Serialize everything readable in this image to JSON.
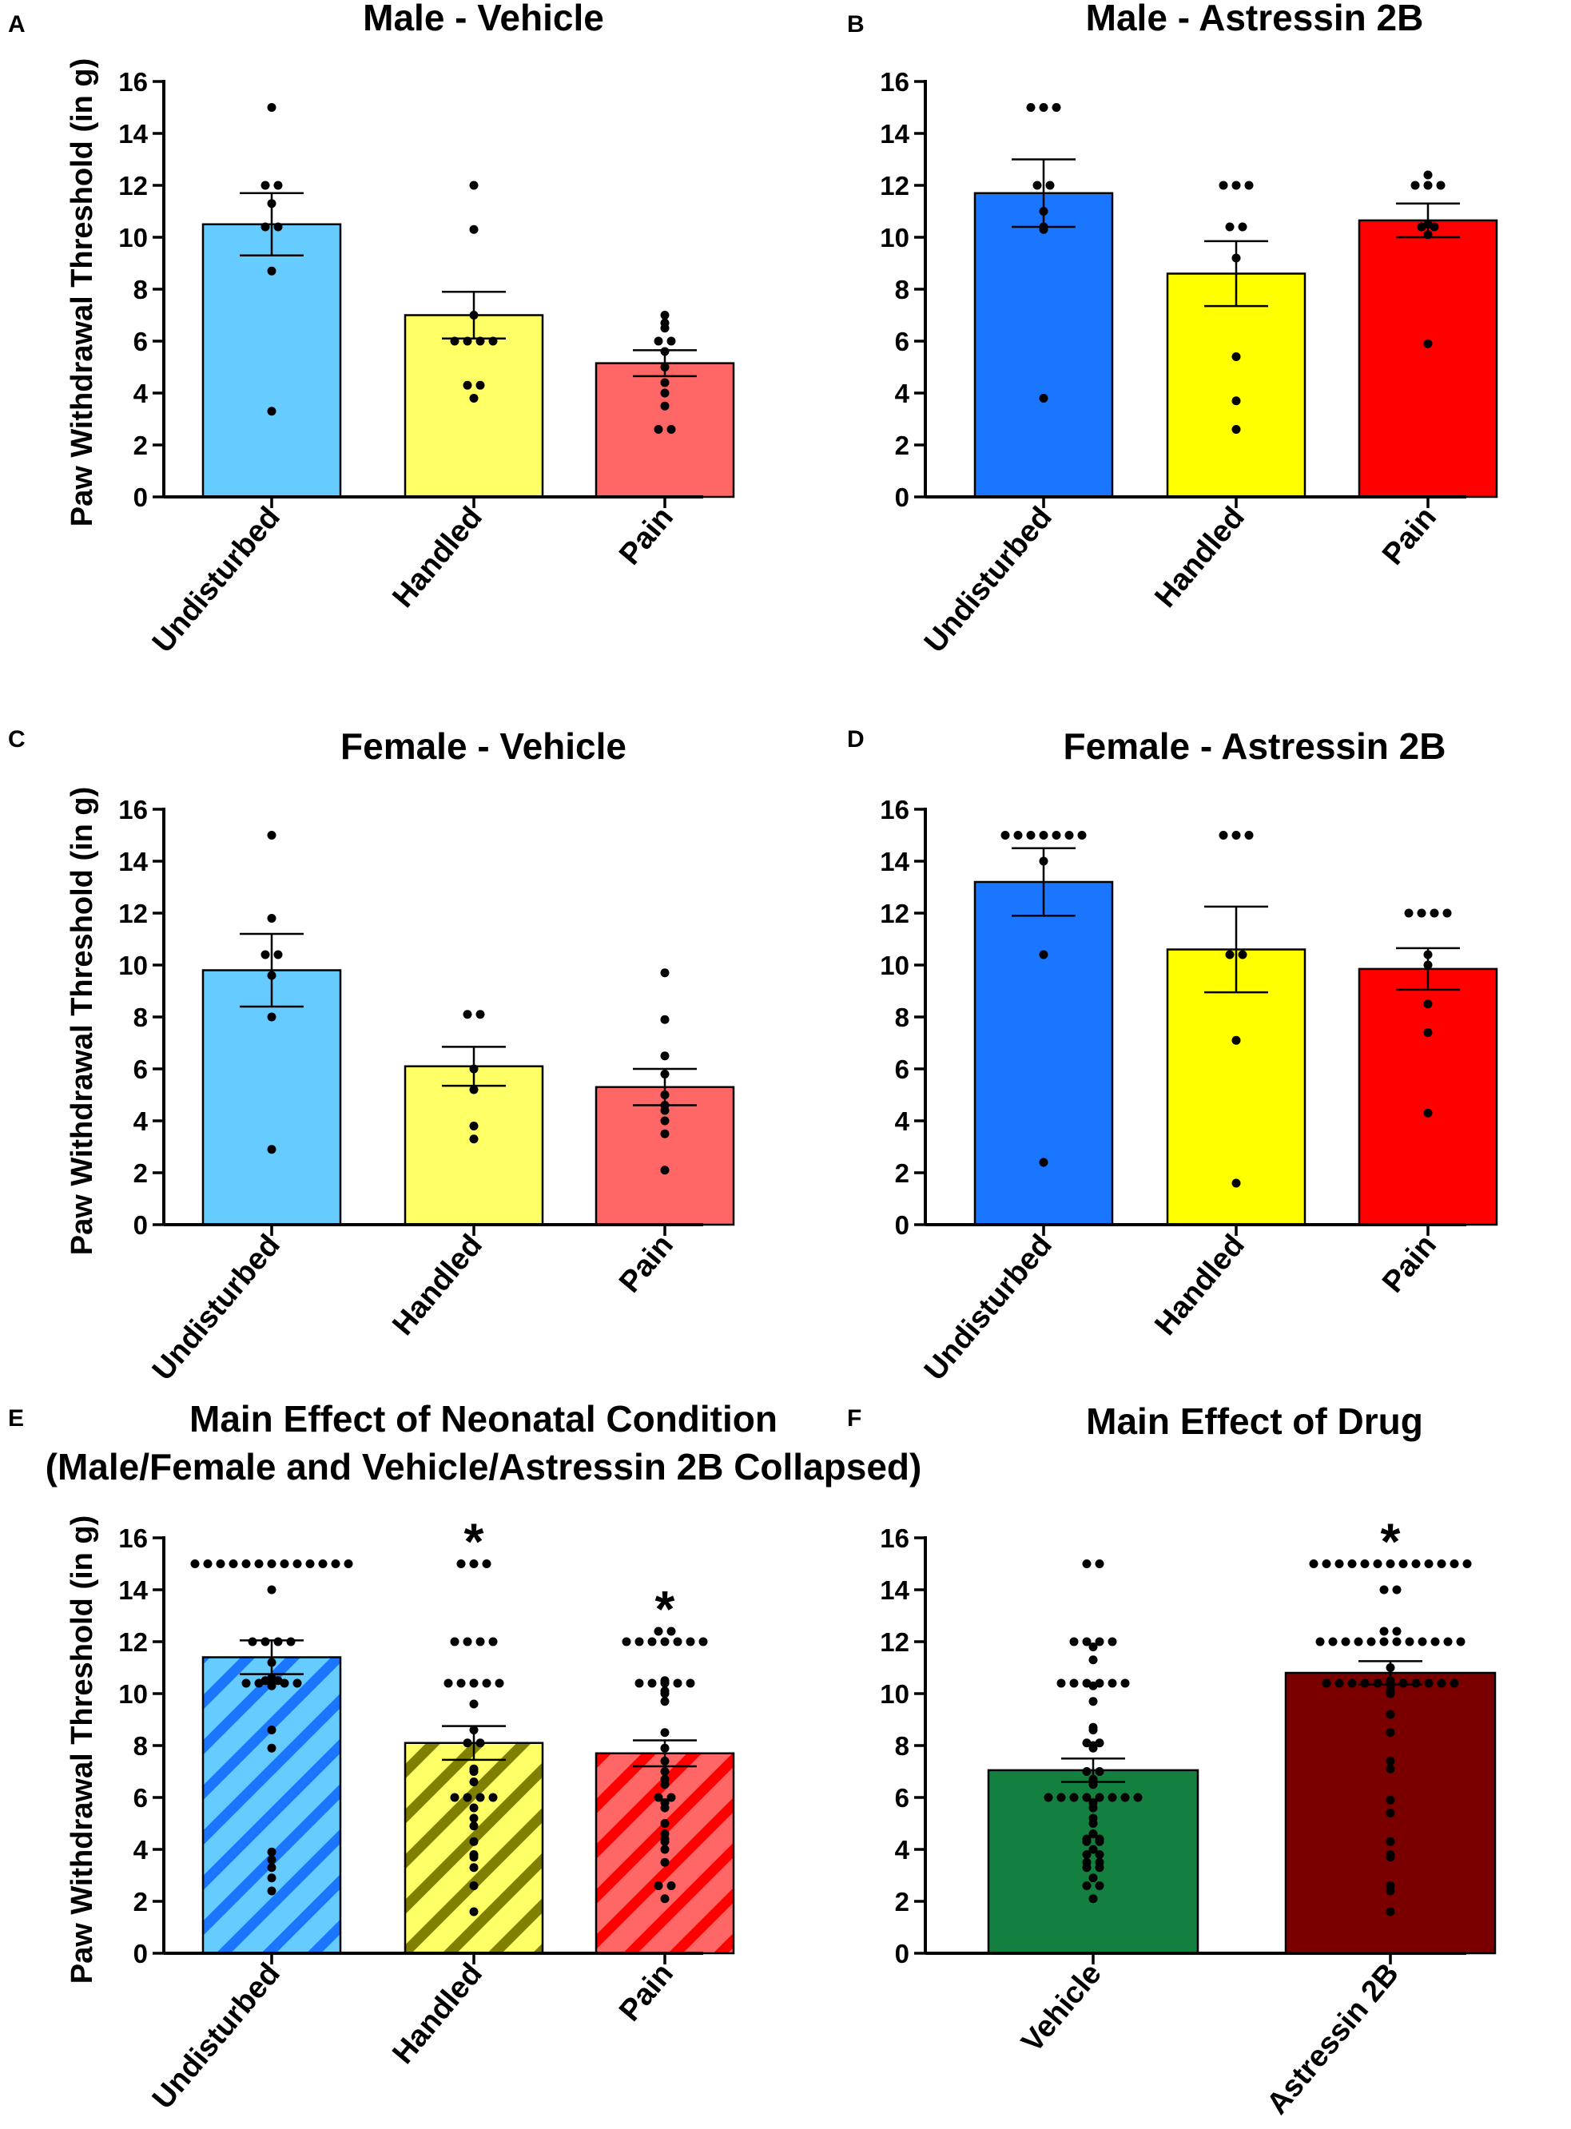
{
  "figure": {
    "description_visible": false
  },
  "chart_data": [
    {
      "panel": "A",
      "type": "bar",
      "title": "Male - Vehicle",
      "title2": "",
      "ylabel": "Paw Withdrawal Threshold (in g)",
      "xlabel": "",
      "ylim": [
        0,
        16
      ],
      "yticks": [
        0,
        2,
        4,
        6,
        8,
        10,
        12,
        14,
        16
      ],
      "categories": [
        "Undisturbed",
        "Handled",
        "Pain"
      ],
      "values": [
        10.5,
        7.0,
        5.15
      ],
      "sem": [
        1.2,
        0.9,
        0.5
      ],
      "colors": [
        "#66ccff",
        "#ffff66",
        "#ff6666"
      ],
      "pattern": false,
      "significance": [
        "",
        "",
        ""
      ],
      "points": [
        [
          15.0,
          12.0,
          12.0,
          11.3,
          10.4,
          10.4,
          8.7,
          3.3
        ],
        [
          12.0,
          10.3,
          7.0,
          6.0,
          6.0,
          6.0,
          6.0,
          4.3,
          4.3,
          3.8
        ],
        [
          7.0,
          6.7,
          6.5,
          6.0,
          6.0,
          5.6,
          5.0,
          4.4,
          4.0,
          3.5,
          2.6,
          2.6
        ]
      ]
    },
    {
      "panel": "B",
      "type": "bar",
      "title": "Male - Astressin 2B",
      "title2": "",
      "ylabel": "",
      "xlabel": "",
      "ylim": [
        0,
        16
      ],
      "yticks": [
        0,
        2,
        4,
        6,
        8,
        10,
        12,
        14,
        16
      ],
      "categories": [
        "Undisturbed",
        "Handled",
        "Pain"
      ],
      "values": [
        11.7,
        8.6,
        10.65
      ],
      "sem": [
        1.3,
        1.25,
        0.65
      ],
      "colors": [
        "#1a75ff",
        "#ffff00",
        "#ff0000"
      ],
      "pattern": false,
      "significance": [
        "",
        "",
        ""
      ],
      "points": [
        [
          15.0,
          15.0,
          15.0,
          12.0,
          12.0,
          11.0,
          10.4,
          10.3,
          3.8
        ],
        [
          12.0,
          12.0,
          12.0,
          10.4,
          10.4,
          9.2,
          5.4,
          3.7,
          2.6
        ],
        [
          12.4,
          12.0,
          12.0,
          12.0,
          10.5,
          10.4,
          10.4,
          10.1,
          5.9
        ]
      ]
    },
    {
      "panel": "C",
      "type": "bar",
      "title": "Female - Vehicle",
      "title2": "",
      "ylabel": "Paw Withdrawal Threshold (in g)",
      "xlabel": "",
      "ylim": [
        0,
        16
      ],
      "yticks": [
        0,
        2,
        4,
        6,
        8,
        10,
        12,
        14,
        16
      ],
      "categories": [
        "Undisturbed",
        "Handled",
        "Pain"
      ],
      "values": [
        9.8,
        6.1,
        5.3
      ],
      "sem": [
        1.4,
        0.75,
        0.7
      ],
      "colors": [
        "#66ccff",
        "#ffff66",
        "#ff6666"
      ],
      "pattern": false,
      "significance": [
        "",
        "",
        ""
      ],
      "points": [
        [
          15.0,
          11.8,
          10.4,
          10.4,
          9.6,
          8.0,
          2.9
        ],
        [
          8.1,
          8.1,
          6.0,
          5.2,
          3.8,
          3.3
        ],
        [
          9.7,
          7.9,
          6.5,
          5.8,
          5.0,
          4.6,
          4.4,
          4.0,
          3.5,
          2.1
        ]
      ]
    },
    {
      "panel": "D",
      "type": "bar",
      "title": "Female - Astressin 2B",
      "title2": "",
      "ylabel": "",
      "xlabel": "",
      "ylim": [
        0,
        16
      ],
      "yticks": [
        0,
        2,
        4,
        6,
        8,
        10,
        12,
        14,
        16
      ],
      "categories": [
        "Undisturbed",
        "Handled",
        "Pain"
      ],
      "values": [
        13.2,
        10.6,
        9.85
      ],
      "sem": [
        1.3,
        1.65,
        0.8
      ],
      "colors": [
        "#1a75ff",
        "#ffff00",
        "#ff0000"
      ],
      "pattern": false,
      "significance": [
        "",
        "",
        ""
      ],
      "points": [
        [
          15.0,
          15.0,
          15.0,
          15.0,
          15.0,
          15.0,
          15.0,
          14.0,
          10.4,
          2.4
        ],
        [
          15.0,
          15.0,
          15.0,
          10.4,
          10.4,
          7.1,
          1.6
        ],
        [
          12.0,
          12.0,
          12.0,
          12.0,
          10.4,
          10.0,
          8.5,
          7.4,
          4.3
        ]
      ]
    },
    {
      "panel": "E",
      "type": "bar",
      "title": "Main Effect of Neonatal Condition",
      "title2": "(Male/Female and Vehicle/Astressin 2B Collapsed)",
      "ylabel": "Paw Withdrawal Threshold (in g)",
      "xlabel": "",
      "ylim": [
        0,
        16
      ],
      "yticks": [
        0,
        2,
        4,
        6,
        8,
        10,
        12,
        14,
        16
      ],
      "categories": [
        "Undisturbed",
        "Handled",
        "Pain"
      ],
      "values": [
        11.4,
        8.1,
        7.7
      ],
      "sem": [
        0.65,
        0.65,
        0.5
      ],
      "colors": [
        "#66ccff",
        "#ffff66",
        "#ff6666"
      ],
      "pattern_colors": [
        "#1a75ff",
        "#808000",
        "#ff0000"
      ],
      "pattern": true,
      "significance": [
        "",
        "*",
        "*"
      ],
      "points": [
        [
          15,
          15,
          15,
          15,
          15,
          15,
          15,
          15,
          15,
          15,
          15,
          15,
          15,
          14.0,
          12.0,
          12.0,
          12.0,
          12.0,
          11.2,
          10.6,
          10.5,
          10.5,
          10.4,
          10.4,
          10.4,
          10.4,
          10.4,
          10.3,
          8.6,
          7.9,
          3.9,
          3.6,
          3.3,
          2.9,
          2.4
        ],
        [
          15,
          15,
          15,
          12.0,
          12.0,
          12.0,
          12.0,
          10.4,
          10.4,
          10.4,
          10.4,
          10.4,
          9.6,
          8.6,
          8.1,
          8.1,
          7.1,
          7.0,
          6.6,
          6.0,
          6.0,
          6.0,
          6.0,
          5.6,
          5.2,
          4.9,
          4.3,
          3.8,
          3.7,
          3.3,
          2.6,
          1.6
        ],
        [
          12.4,
          12.4,
          12.0,
          12.0,
          12.0,
          12.0,
          12.0,
          12.0,
          12.0,
          10.5,
          10.4,
          10.4,
          10.4,
          10.4,
          10.4,
          10.1,
          10.0,
          9.7,
          8.5,
          7.9,
          7.4,
          7.0,
          6.7,
          6.5,
          6.0,
          6.0,
          5.8,
          5.6,
          5.0,
          4.6,
          4.4,
          4.3,
          4.0,
          3.5,
          2.6,
          2.6,
          2.1
        ]
      ]
    },
    {
      "panel": "F",
      "type": "bar",
      "title": "Main Effect of Drug",
      "title2": "",
      "ylabel": "",
      "xlabel": "",
      "ylim": [
        0,
        16
      ],
      "yticks": [
        0,
        2,
        4,
        6,
        8,
        10,
        12,
        14,
        16
      ],
      "categories": [
        "Vehicle",
        "Astressin 2B"
      ],
      "values": [
        7.05,
        10.8
      ],
      "sem": [
        0.45,
        0.45
      ],
      "colors": [
        "#148040",
        "#7a0000"
      ],
      "pattern": false,
      "significance": [
        "",
        "*"
      ],
      "points": [
        [
          15,
          15,
          12.0,
          12.0,
          12.0,
          12.0,
          11.8,
          11.3,
          10.4,
          10.4,
          10.4,
          10.4,
          10.4,
          10.4,
          10.3,
          9.7,
          8.7,
          8.6,
          8.1,
          8.1,
          8.0,
          7.9,
          7.0,
          7.0,
          6.7,
          6.6,
          6.5,
          6.0,
          6.0,
          6.0,
          6.0,
          6.0,
          6.0,
          6.0,
          6.0,
          5.8,
          5.6,
          5.2,
          5.0,
          4.6,
          4.4,
          4.4,
          4.3,
          4.3,
          4.0,
          3.8,
          3.8,
          3.5,
          3.5,
          3.3,
          3.3,
          2.9,
          2.6,
          2.6,
          2.1
        ],
        [
          15,
          15,
          15,
          15,
          15,
          15,
          15,
          15,
          15,
          15,
          15,
          15,
          15,
          14.0,
          14.0,
          12.4,
          12.4,
          12.0,
          12.0,
          12.0,
          12.0,
          12.0,
          12.0,
          12.0,
          12.0,
          12.0,
          12.0,
          12.0,
          12.0,
          11.0,
          10.5,
          10.4,
          10.4,
          10.4,
          10.4,
          10.4,
          10.4,
          10.4,
          10.4,
          10.4,
          10.4,
          10.4,
          10.3,
          10.1,
          10.0,
          9.2,
          8.5,
          7.4,
          7.1,
          5.9,
          5.4,
          4.3,
          3.8,
          3.7,
          2.6,
          2.4,
          1.6
        ]
      ]
    }
  ]
}
